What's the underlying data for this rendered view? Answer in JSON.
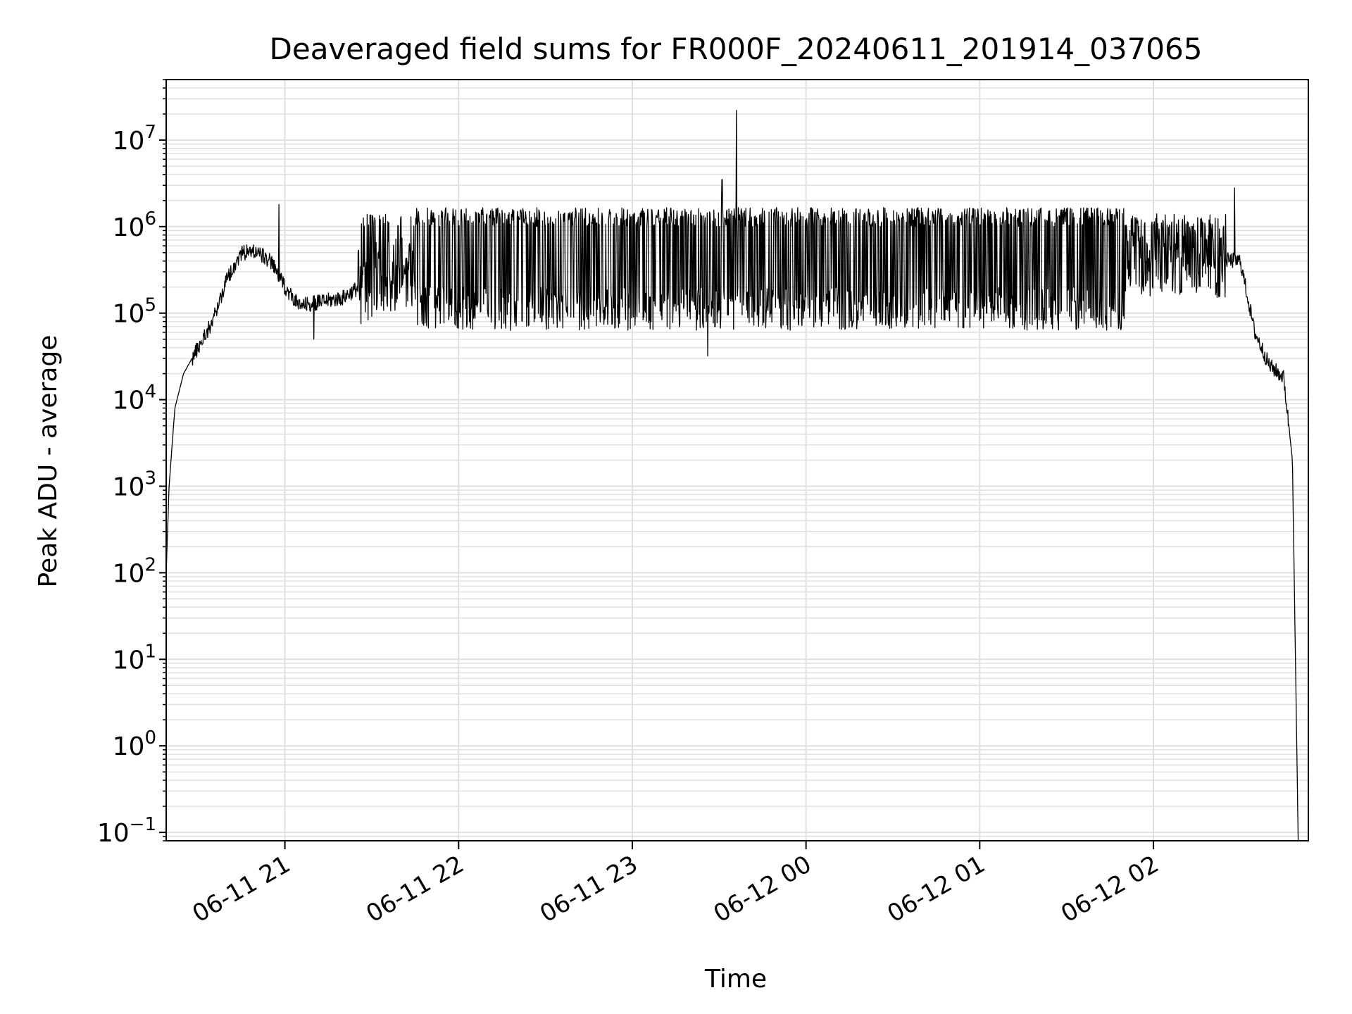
{
  "chart_data": {
    "type": "line",
    "title": "Deaveraged field sums for FR000F_20240611_201914_037065",
    "xlabel": "Time",
    "ylabel": "Peak ADU - average",
    "yscale": "log",
    "ylim": [
      0.08,
      50000000
    ],
    "xlim": [
      "2024-06-11 20:19:00",
      "2024-06-12 02:53:30"
    ],
    "grid": true,
    "legend": "none",
    "x_ticks": [
      {
        "label": "06-11 21",
        "time": "2024-06-11 21:00"
      },
      {
        "label": "06-11 22",
        "time": "2024-06-11 22:00"
      },
      {
        "label": "06-11 23",
        "time": "2024-06-11 23:00"
      },
      {
        "label": "06-12 00",
        "time": "2024-06-12 00:00"
      },
      {
        "label": "06-12 01",
        "time": "2024-06-12 01:00"
      },
      {
        "label": "06-12 02",
        "time": "2024-06-12 02:00"
      }
    ],
    "y_ticks": [
      {
        "base": "10",
        "exp": "−1",
        "value": 0.1
      },
      {
        "base": "10",
        "exp": "0",
        "value": 1
      },
      {
        "base": "10",
        "exp": "1",
        "value": 10
      },
      {
        "base": "10",
        "exp": "2",
        "value": 100
      },
      {
        "base": "10",
        "exp": "3",
        "value": 1000
      },
      {
        "base": "10",
        "exp": "4",
        "value": 10000
      },
      {
        "base": "10",
        "exp": "5",
        "value": 100000
      },
      {
        "base": "10",
        "exp": "6",
        "value": 1000000
      },
      {
        "base": "10",
        "exp": "7",
        "value": 10000000
      }
    ],
    "colors": {
      "line": "#000000",
      "grid": "#e0e0e0",
      "axes": "#000000"
    },
    "series": [
      {
        "description_points": [
          [
            "2024-06-11 20:19:00",
            100
          ],
          [
            "2024-06-11 20:20:00",
            1000
          ],
          [
            "2024-06-11 20:22:00",
            8000
          ],
          [
            "2024-06-11 20:25:00",
            20000
          ],
          [
            "2024-06-11 20:30:00",
            40000
          ],
          [
            "2024-06-11 20:35:00",
            80000
          ],
          [
            "2024-06-11 20:40:00",
            250000
          ],
          [
            "2024-06-11 20:45:00",
            500000
          ],
          [
            "2024-06-11 20:50:00",
            520000
          ],
          [
            "2024-06-11 20:55:00",
            400000
          ],
          [
            "2024-06-11 21:00:00",
            200000
          ],
          [
            "2024-06-11 21:05:00",
            120000
          ],
          [
            "2024-06-11 21:10:00",
            130000
          ],
          [
            "2024-06-11 21:20:00",
            150000
          ],
          [
            "2024-06-11 21:30:00",
            250000
          ],
          [
            "2024-06-11 22:00:00",
            400000
          ],
          [
            "2024-06-11 23:00:00",
            500000
          ],
          [
            "2024-06-11 23:36:00",
            22000000
          ],
          [
            "2024-06-12 00:00:00",
            500000
          ],
          [
            "2024-06-12 01:00:00",
            500000
          ],
          [
            "2024-06-12 01:30:00",
            350000
          ],
          [
            "2024-06-12 02:00:00",
            450000
          ],
          [
            "2024-06-12 02:30:00",
            400000
          ],
          [
            "2024-06-12 02:35:00",
            60000
          ],
          [
            "2024-06-12 02:40:00",
            25000
          ],
          [
            "2024-06-12 02:45:00",
            18000
          ],
          [
            "2024-06-12 02:48:00",
            2000
          ],
          [
            "2024-06-12 02:50:00",
            0.08
          ]
        ],
        "spikes": [
          [
            "2024-06-11 23:31:00",
            3500000
          ],
          [
            "2024-06-11 23:36:00",
            22000000
          ],
          [
            "2024-06-12 02:28:00",
            2800000
          ],
          [
            "2024-06-11 20:58:00",
            1800000
          ],
          [
            "2024-06-11 21:10:00",
            50000
          ],
          [
            "2024-06-11 23:26:00",
            32000
          ]
        ]
      }
    ]
  }
}
